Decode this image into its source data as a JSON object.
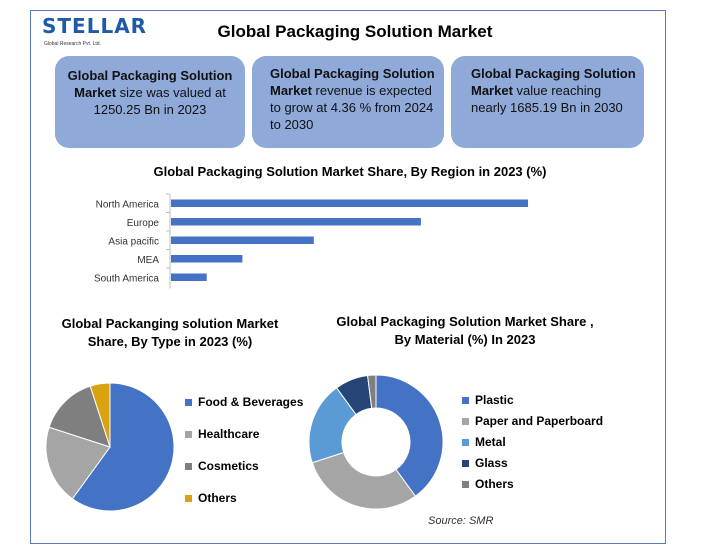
{
  "brand": {
    "name": "STELLAR",
    "tagline": "Global Research Pvt. Ltd."
  },
  "title": "Global Packaging Solution Market",
  "cards": [
    {
      "bold": "Global Packaging Solution Market",
      "text": " size was valued at 1250.25 Bn in 2023"
    },
    {
      "bold": "Global Packaging Solution Market",
      "text": " revenue is expected to grow at 4.36 % from 2024 to 2030"
    },
    {
      "bold": "Global Packaging Solution Market",
      "text": " value reaching nearly 1685.19 Bn in 2030"
    }
  ],
  "source": "Source: SMR",
  "colors": {
    "bar": "#4472c4",
    "card": "#8fa9d9",
    "frame": "#5b7bbf"
  },
  "chart_data": [
    {
      "type": "bar",
      "orientation": "horizontal",
      "title": "Global Packaging Solution Market Share, By Region in 2023 (%)",
      "categories": [
        "North America",
        "Europe",
        "Asia pacific",
        "MEA",
        "South America"
      ],
      "values": [
        40,
        28,
        16,
        8,
        4
      ],
      "color": "#4472c4"
    },
    {
      "type": "pie",
      "title": "Global Packanging solution Market Share, By Type in 2023 (%)",
      "labels": [
        "Food & Beverages",
        "Healthcare",
        "Cosmetics",
        "Others"
      ],
      "values": [
        60,
        20,
        15,
        5
      ],
      "colors": [
        "#4472c4",
        "#a5a5a5",
        "#7f7f7f",
        "#d9a30f"
      ],
      "legend": "right"
    },
    {
      "type": "pie",
      "subtype": "donut",
      "title": "Global Packaging Solution Market Share , By Material (%) In 2023",
      "labels": [
        "Plastic",
        "Paper and Paperboard",
        "Metal",
        "Glass",
        "Others"
      ],
      "values": [
        40,
        30,
        20,
        8,
        2
      ],
      "colors": [
        "#4472c4",
        "#a5a5a5",
        "#5b9bd5",
        "#264478",
        "#7f7f7f"
      ],
      "legend": "right"
    }
  ]
}
